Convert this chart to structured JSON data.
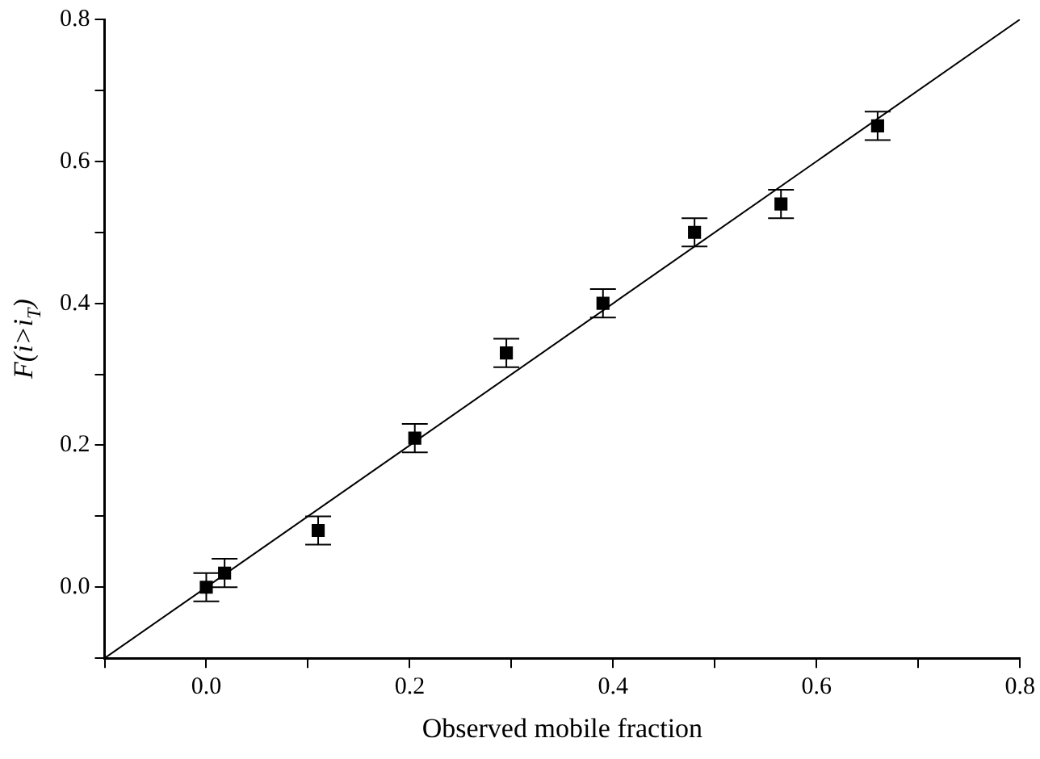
{
  "chart_data": {
    "type": "scatter",
    "xlabel": "Observed mobile fraction",
    "ylabel": "F(i>i$_{T}$)",
    "series": [
      {
        "type": "scatter",
        "color": "#000000",
        "marker": "square",
        "x": [
          0.0,
          0.018,
          0.11,
          0.205,
          0.295,
          0.39,
          0.48,
          0.565,
          0.66
        ],
        "values": [
          0.0,
          0.02,
          0.08,
          0.21,
          0.33,
          0.4,
          0.5,
          0.54,
          0.65
        ],
        "errors": [
          0.02,
          0.02,
          0.02,
          0.02,
          0.02,
          0.02,
          0.02,
          0.02,
          0.02
        ]
      },
      {
        "type": "line",
        "color": "#000000",
        "marker": "none",
        "line_style": "solid",
        "x": [
          -0.1,
          0.8
        ],
        "values": [
          -0.1,
          0.8
        ]
      }
    ],
    "xlim": [
      -0.1,
      0.8
    ],
    "ylim": [
      -0.1,
      0.8
    ],
    "xticks": [
      {
        "value": -0.1,
        "label": null
      },
      "0.0",
      {
        "value": 0.1,
        "label": null
      },
      0.2,
      {
        "value": 0.3,
        "label": null
      },
      0.4,
      {
        "value": 0.5,
        "label": null
      },
      0.6,
      {
        "value": 0.7,
        "label": null
      },
      0.8
    ],
    "yticks": [
      {
        "value": -0.1,
        "label": null
      },
      "0.0",
      {
        "value": 0.1,
        "label": null
      },
      0.2,
      {
        "value": 0.3,
        "label": null
      },
      0.4,
      {
        "value": 0.5,
        "label": null
      },
      0.6,
      {
        "value": 0.7,
        "label": null
      },
      0.8
    ],
    "grid": false,
    "legend": false
  }
}
